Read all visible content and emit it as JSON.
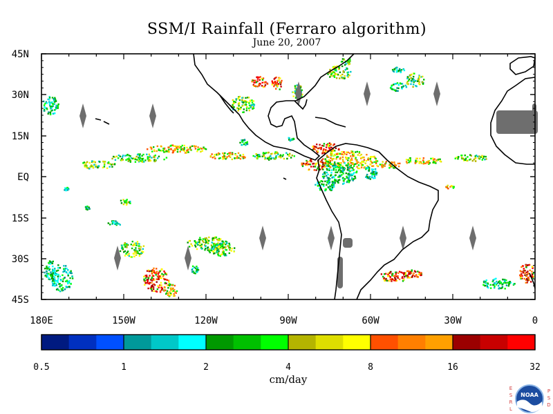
{
  "title": "SSM/I Rainfall (Ferraro algorithm)",
  "subtitle": "June 20, 2007",
  "map": {
    "lat_labels": [
      "45N",
      "30N",
      "15N",
      "EQ",
      "15S",
      "30S",
      "45S"
    ],
    "lon_labels": [
      "180E",
      "150W",
      "120W",
      "90W",
      "60W",
      "30W",
      "0"
    ],
    "land_color": "#000000",
    "missing_color": "#6e6e6e",
    "ocean_color": "#ffffff"
  },
  "colorbar": {
    "units": "cm/day",
    "tick_labels": [
      "0.5",
      "1",
      "2",
      "4",
      "8",
      "16",
      "32"
    ],
    "colors": [
      "#001a80",
      "#0030c0",
      "#0050ff",
      "#00999a",
      "#00c8c8",
      "#00ffff",
      "#009900",
      "#00c000",
      "#00ff00",
      "#b4b400",
      "#dede00",
      "#ffff00",
      "#ff5000",
      "#ff7f00",
      "#ffa000",
      "#9b0000",
      "#c80000",
      "#ff0000"
    ]
  },
  "logo": {
    "text": "NOAA",
    "left_letters": "ESRL",
    "right_letters": "PSD"
  }
}
